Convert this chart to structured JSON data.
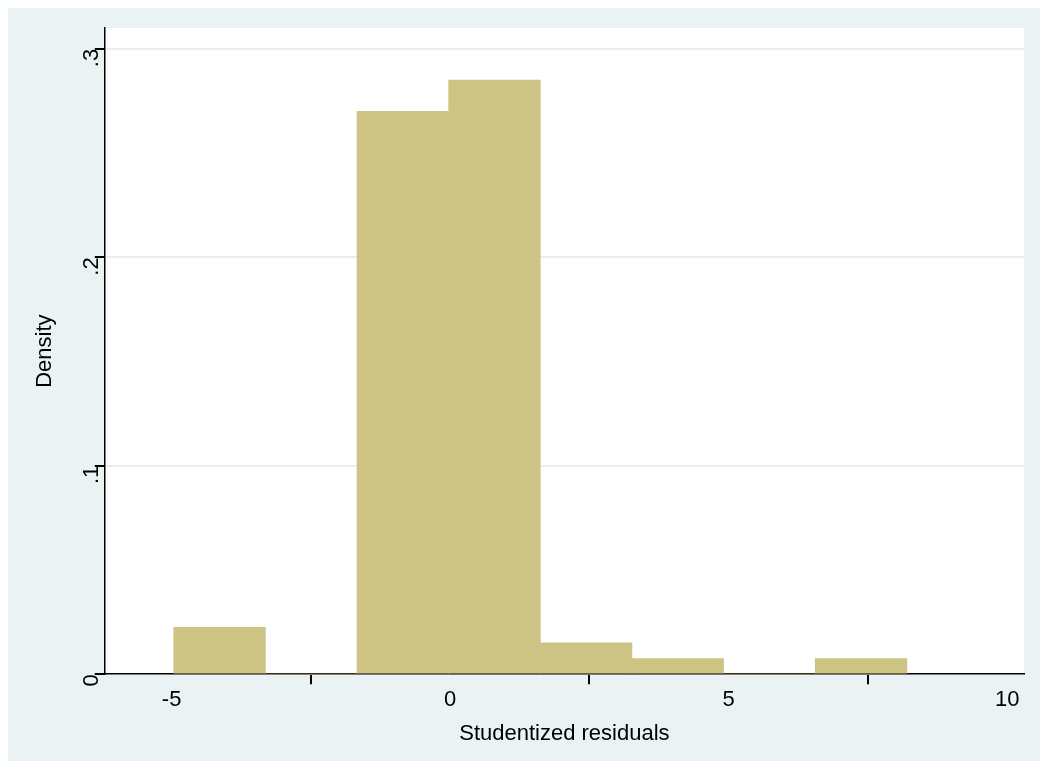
{
  "chart_data": {
    "type": "histogram",
    "xlabel": "Studentized residuals",
    "ylabel": "Density",
    "bins": [
      -4.96,
      -3.32,
      -1.67,
      -0.03,
      1.62,
      3.26,
      4.91,
      6.55,
      8.2
    ],
    "values": [
      0.0225,
      0,
      0.27,
      0.285,
      0.015,
      0.0075,
      0,
      0.0075
    ],
    "color": "#cdc383",
    "xlim": [
      -6.2,
      10.3
    ],
    "xticks": [
      -5,
      0,
      5,
      10
    ],
    "ylim": [
      0,
      0.31
    ],
    "yticks": [
      0,
      {
        "value": 0.1,
        "label": ".1"
      },
      {
        "value": 0.2,
        "label": ".2"
      },
      {
        "value": 0.3,
        "label": ".3"
      }
    ],
    "grid": "y"
  }
}
